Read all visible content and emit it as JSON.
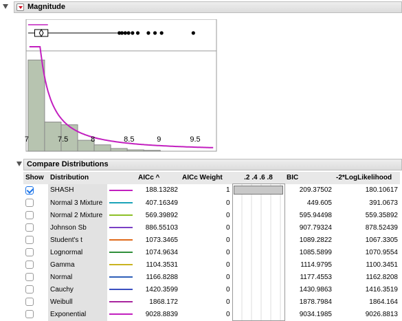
{
  "magnitude": {
    "title": "Magnitude"
  },
  "chart_data": {
    "type": "bar",
    "x_ticks": [
      "7",
      "7.5",
      "8",
      "8.5",
      "9",
      "9.5"
    ],
    "bins": [
      {
        "start": 7.0,
        "end": 7.25,
        "value": 1.0
      },
      {
        "start": 7.25,
        "end": 7.5,
        "value": 0.32
      },
      {
        "start": 7.5,
        "end": 7.75,
        "value": 0.29
      },
      {
        "start": 7.75,
        "end": 8.0,
        "value": 0.12
      },
      {
        "start": 8.0,
        "end": 8.25,
        "value": 0.07
      },
      {
        "start": 8.25,
        "end": 8.5,
        "value": 0.03
      },
      {
        "start": 8.5,
        "end": 8.75,
        "value": 0.015
      },
      {
        "start": 8.75,
        "end": 9.0,
        "value": 0.01
      }
    ],
    "xlim": [
      6.97,
      9.85
    ],
    "ylim": [
      0,
      1.1
    ],
    "curve": "SHASH fit (magenta)",
    "boxplot": {
      "min": 7.0,
      "q1": 7.1,
      "median": 7.3,
      "q3": 7.3,
      "whisker_high": 8.35,
      "outliers": [
        8.38,
        8.42,
        8.47,
        8.52,
        8.58,
        8.66,
        8.82,
        8.92,
        9.02,
        9.5
      ]
    }
  },
  "compare": {
    "title": "Compare Distributions",
    "headers": {
      "show": "Show",
      "distribution": "Distribution",
      "aicc": "AICc ^",
      "aicc_weight": "AICc Weight",
      "weight_ticks": ".2  .4  .6  .8",
      "bic": "BIC",
      "loglik": "-2*LogLikelihood"
    },
    "rows": [
      {
        "show": true,
        "name": "SHASH",
        "color": "#c21fbf",
        "aicc": "188.13282",
        "weight": "1",
        "bic": "209.37502",
        "loglik": "180.10617"
      },
      {
        "show": false,
        "name": "Normal 3 Mixture",
        "color": "#1aa3b8",
        "aicc": "407.16349",
        "weight": "0",
        "bic": "449.605",
        "loglik": "391.0673"
      },
      {
        "show": false,
        "name": "Normal 2 Mixture",
        "color": "#8cbf26",
        "aicc": "569.39892",
        "weight": "0",
        "bic": "595.94498",
        "loglik": "559.35892"
      },
      {
        "show": false,
        "name": "Johnson Sb",
        "color": "#7a3fc4",
        "aicc": "886.55103",
        "weight": "0",
        "bic": "907.79324",
        "loglik": "878.52439"
      },
      {
        "show": false,
        "name": "Student's t",
        "color": "#e06a1b",
        "aicc": "1073.3465",
        "weight": "0",
        "bic": "1089.2822",
        "loglik": "1067.3305"
      },
      {
        "show": false,
        "name": "Lognormal",
        "color": "#2f8f3a",
        "aicc": "1074.9634",
        "weight": "0",
        "bic": "1085.5899",
        "loglik": "1070.9554"
      },
      {
        "show": false,
        "name": "Gamma",
        "color": "#c9b320",
        "aicc": "1104.3531",
        "weight": "0",
        "bic": "1114.9795",
        "loglik": "1100.3451"
      },
      {
        "show": false,
        "name": "Normal",
        "color": "#2e5fb8",
        "aicc": "1166.8288",
        "weight": "0",
        "bic": "1177.4553",
        "loglik": "1162.8208"
      },
      {
        "show": false,
        "name": "Cauchy",
        "color": "#3a4fc0",
        "aicc": "1420.3599",
        "weight": "0",
        "bic": "1430.9863",
        "loglik": "1416.3519"
      },
      {
        "show": false,
        "name": "Weibull",
        "color": "#a8249d",
        "aicc": "1868.172",
        "weight": "0",
        "bic": "1878.7984",
        "loglik": "1864.164"
      },
      {
        "show": false,
        "name": "Exponential",
        "color": "#c21fbf",
        "aicc": "9028.8839",
        "weight": "0",
        "bic": "9034.1985",
        "loglik": "9026.8813"
      }
    ]
  }
}
